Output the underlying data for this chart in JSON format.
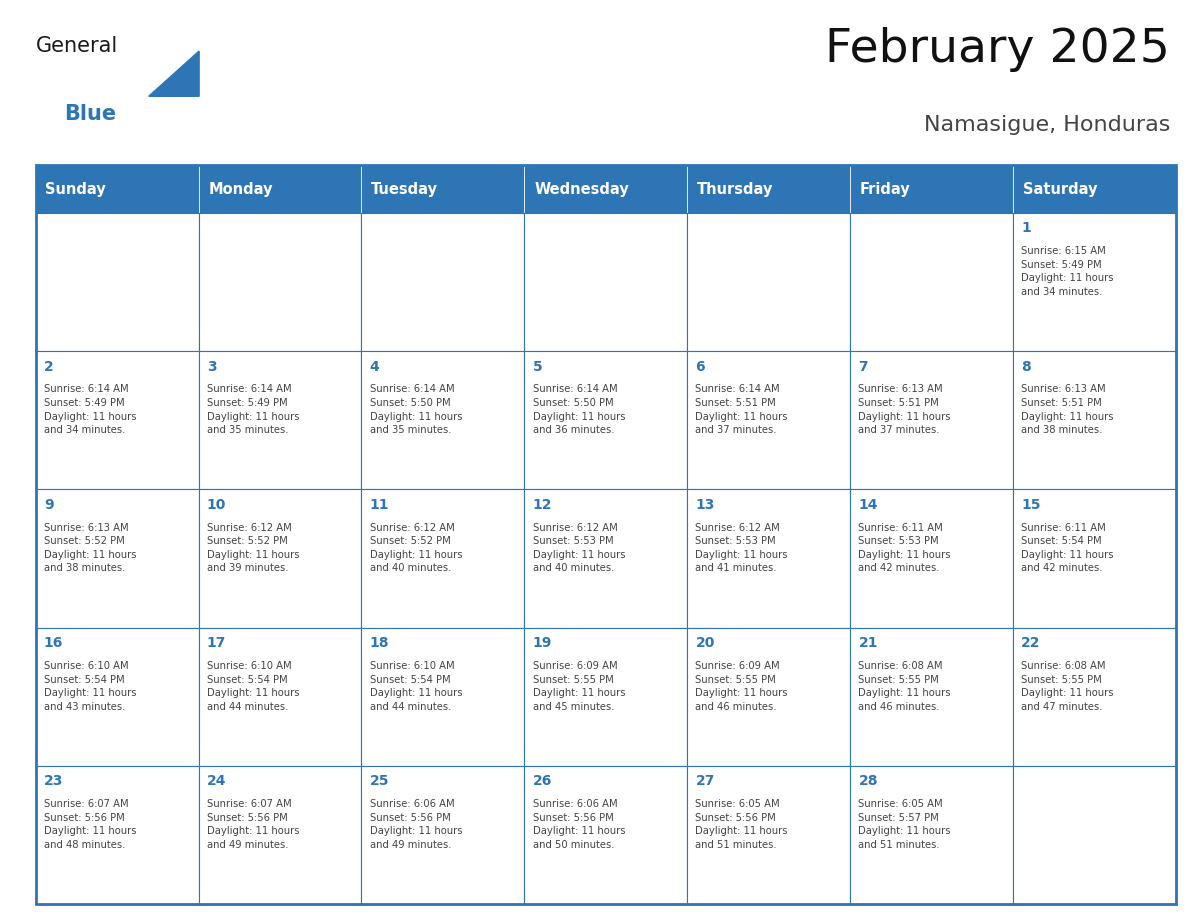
{
  "title": "February 2025",
  "subtitle": "Namasigue, Honduras",
  "header_bg": "#2E75B6",
  "header_text_color": "#FFFFFF",
  "cell_bg": "#FFFFFF",
  "border_color": "#2E75B6",
  "day_names": [
    "Sunday",
    "Monday",
    "Tuesday",
    "Wednesday",
    "Thursday",
    "Friday",
    "Saturday"
  ],
  "title_color": "#111111",
  "subtitle_color": "#444444",
  "day_num_color": "#2E75B6",
  "text_color": "#444444",
  "calendar": [
    [
      {
        "day": 0,
        "text": ""
      },
      {
        "day": 0,
        "text": ""
      },
      {
        "day": 0,
        "text": ""
      },
      {
        "day": 0,
        "text": ""
      },
      {
        "day": 0,
        "text": ""
      },
      {
        "day": 0,
        "text": ""
      },
      {
        "day": 1,
        "text": "Sunrise: 6:15 AM\nSunset: 5:49 PM\nDaylight: 11 hours\nand 34 minutes."
      }
    ],
    [
      {
        "day": 2,
        "text": "Sunrise: 6:14 AM\nSunset: 5:49 PM\nDaylight: 11 hours\nand 34 minutes."
      },
      {
        "day": 3,
        "text": "Sunrise: 6:14 AM\nSunset: 5:49 PM\nDaylight: 11 hours\nand 35 minutes."
      },
      {
        "day": 4,
        "text": "Sunrise: 6:14 AM\nSunset: 5:50 PM\nDaylight: 11 hours\nand 35 minutes."
      },
      {
        "day": 5,
        "text": "Sunrise: 6:14 AM\nSunset: 5:50 PM\nDaylight: 11 hours\nand 36 minutes."
      },
      {
        "day": 6,
        "text": "Sunrise: 6:14 AM\nSunset: 5:51 PM\nDaylight: 11 hours\nand 37 minutes."
      },
      {
        "day": 7,
        "text": "Sunrise: 6:13 AM\nSunset: 5:51 PM\nDaylight: 11 hours\nand 37 minutes."
      },
      {
        "day": 8,
        "text": "Sunrise: 6:13 AM\nSunset: 5:51 PM\nDaylight: 11 hours\nand 38 minutes."
      }
    ],
    [
      {
        "day": 9,
        "text": "Sunrise: 6:13 AM\nSunset: 5:52 PM\nDaylight: 11 hours\nand 38 minutes."
      },
      {
        "day": 10,
        "text": "Sunrise: 6:12 AM\nSunset: 5:52 PM\nDaylight: 11 hours\nand 39 minutes."
      },
      {
        "day": 11,
        "text": "Sunrise: 6:12 AM\nSunset: 5:52 PM\nDaylight: 11 hours\nand 40 minutes."
      },
      {
        "day": 12,
        "text": "Sunrise: 6:12 AM\nSunset: 5:53 PM\nDaylight: 11 hours\nand 40 minutes."
      },
      {
        "day": 13,
        "text": "Sunrise: 6:12 AM\nSunset: 5:53 PM\nDaylight: 11 hours\nand 41 minutes."
      },
      {
        "day": 14,
        "text": "Sunrise: 6:11 AM\nSunset: 5:53 PM\nDaylight: 11 hours\nand 42 minutes."
      },
      {
        "day": 15,
        "text": "Sunrise: 6:11 AM\nSunset: 5:54 PM\nDaylight: 11 hours\nand 42 minutes."
      }
    ],
    [
      {
        "day": 16,
        "text": "Sunrise: 6:10 AM\nSunset: 5:54 PM\nDaylight: 11 hours\nand 43 minutes."
      },
      {
        "day": 17,
        "text": "Sunrise: 6:10 AM\nSunset: 5:54 PM\nDaylight: 11 hours\nand 44 minutes."
      },
      {
        "day": 18,
        "text": "Sunrise: 6:10 AM\nSunset: 5:54 PM\nDaylight: 11 hours\nand 44 minutes."
      },
      {
        "day": 19,
        "text": "Sunrise: 6:09 AM\nSunset: 5:55 PM\nDaylight: 11 hours\nand 45 minutes."
      },
      {
        "day": 20,
        "text": "Sunrise: 6:09 AM\nSunset: 5:55 PM\nDaylight: 11 hours\nand 46 minutes."
      },
      {
        "day": 21,
        "text": "Sunrise: 6:08 AM\nSunset: 5:55 PM\nDaylight: 11 hours\nand 46 minutes."
      },
      {
        "day": 22,
        "text": "Sunrise: 6:08 AM\nSunset: 5:55 PM\nDaylight: 11 hours\nand 47 minutes."
      }
    ],
    [
      {
        "day": 23,
        "text": "Sunrise: 6:07 AM\nSunset: 5:56 PM\nDaylight: 11 hours\nand 48 minutes."
      },
      {
        "day": 24,
        "text": "Sunrise: 6:07 AM\nSunset: 5:56 PM\nDaylight: 11 hours\nand 49 minutes."
      },
      {
        "day": 25,
        "text": "Sunrise: 6:06 AM\nSunset: 5:56 PM\nDaylight: 11 hours\nand 49 minutes."
      },
      {
        "day": 26,
        "text": "Sunrise: 6:06 AM\nSunset: 5:56 PM\nDaylight: 11 hours\nand 50 minutes."
      },
      {
        "day": 27,
        "text": "Sunrise: 6:05 AM\nSunset: 5:56 PM\nDaylight: 11 hours\nand 51 minutes."
      },
      {
        "day": 28,
        "text": "Sunrise: 6:05 AM\nSunset: 5:57 PM\nDaylight: 11 hours\nand 51 minutes."
      },
      {
        "day": 0,
        "text": ""
      }
    ]
  ],
  "logo_general_color": "#1a1a1a",
  "logo_blue_color": "#2E75B6",
  "fig_width": 11.88,
  "fig_height": 9.18,
  "dpi": 100
}
